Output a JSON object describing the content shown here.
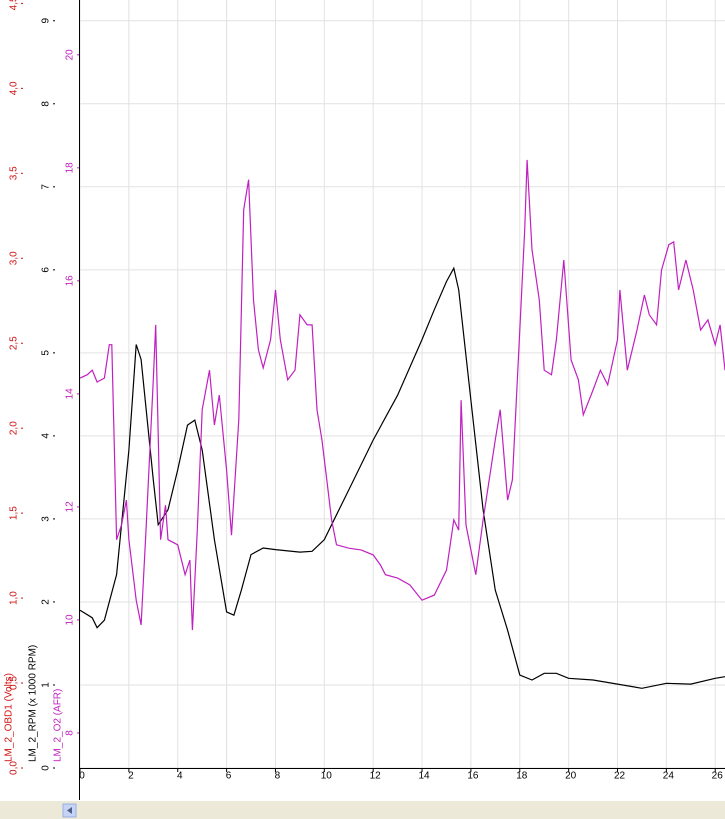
{
  "chart_data": {
    "type": "line",
    "grid": true,
    "xlim": [
      0,
      26.4
    ],
    "xticks": [
      0,
      2,
      4,
      6,
      8,
      10,
      12,
      14,
      16,
      18,
      20,
      22,
      24,
      26
    ],
    "yaxes": [
      {
        "label": "LM_2_OBD1 (Volts)",
        "color": "#d01010",
        "ylim": [
          0,
          4.52
        ],
        "yticks": [
          {
            "value": 0,
            "label": "0,0"
          },
          {
            "value": 0.5,
            "label": "0,5"
          },
          {
            "value": 1,
            "label": "1,0"
          },
          {
            "value": 1.5,
            "label": "1,5"
          },
          {
            "value": 2,
            "label": "2,0"
          },
          {
            "value": 2.5,
            "label": "2,5"
          },
          {
            "value": 3,
            "label": "3,0"
          },
          {
            "value": 3.5,
            "label": "3,5"
          },
          {
            "value": 4,
            "label": "4,0"
          },
          {
            "value": 4.5,
            "label": "4,5"
          }
        ]
      },
      {
        "label": "LM_2_RPM (x 1000 RPM)",
        "color": "#000000",
        "ylim": [
          0,
          9.25
        ],
        "yticks": [
          0,
          1,
          2,
          3,
          4,
          5,
          6,
          7,
          8,
          9
        ]
      },
      {
        "label": "LM_2_O2 (AFR)",
        "color": "#c020c0",
        "ylim": [
          7.38,
          20.97
        ],
        "yticks": [
          8,
          10,
          12,
          14,
          16,
          18,
          20
        ]
      }
    ],
    "series": [
      {
        "name": "LM_2_RPM",
        "color": "#000000",
        "axis": 1,
        "x": [
          0,
          0.5,
          0.7,
          1,
          1.5,
          2,
          2.3,
          2.5,
          3,
          3.2,
          3.6,
          4,
          4.4,
          4.7,
          5,
          5.5,
          6,
          6.3,
          6.6,
          7,
          7.5,
          8,
          9,
          9.5,
          10,
          10.5,
          11,
          12,
          13,
          14,
          14.5,
          15,
          15.3,
          15.5,
          16,
          16.5,
          17,
          17.5,
          18,
          18.5,
          19,
          19.5,
          20,
          21,
          22,
          23,
          24,
          25,
          26,
          26.4
        ],
        "values": [
          1.9,
          1.81,
          1.69,
          1.78,
          2.33,
          3.83,
          5.1,
          4.92,
          3.47,
          2.93,
          3.11,
          3.59,
          4.13,
          4.19,
          3.83,
          2.75,
          1.88,
          1.84,
          2.14,
          2.57,
          2.65,
          2.63,
          2.6,
          2.61,
          2.75,
          3.05,
          3.35,
          3.95,
          4.49,
          5.16,
          5.52,
          5.86,
          6.02,
          5.76,
          4.43,
          3.11,
          2.14,
          1.66,
          1.12,
          1.06,
          1.14,
          1.14,
          1.08,
          1.06,
          1.01,
          0.96,
          1.02,
          1.01,
          1.08,
          1.1
        ]
      },
      {
        "name": "LM_2_O2",
        "color": "#c020c0",
        "axis": 2,
        "x": [
          0,
          0.3,
          0.5,
          0.7,
          1,
          1.2,
          1.3,
          1.5,
          1.7,
          1.9,
          2,
          2.3,
          2.5,
          2.7,
          3,
          3.1,
          3.3,
          3.5,
          3.6,
          4,
          4.3,
          4.5,
          4.6,
          4.8,
          5,
          5.3,
          5.5,
          5.7,
          6,
          6.2,
          6.5,
          6.7,
          6.9,
          7.1,
          7.3,
          7.5,
          7.8,
          8,
          8.2,
          8.5,
          8.8,
          9,
          9.3,
          9.5,
          9.7,
          9.9,
          10.1,
          10.3,
          10.5,
          11,
          11.5,
          12,
          12.3,
          12.5,
          13,
          13.5,
          14,
          14.5,
          15,
          15.3,
          15.5,
          15.6,
          15.8,
          16.2,
          16.5,
          17,
          17.2,
          17.5,
          17.7,
          18,
          18.2,
          18.3,
          18.5,
          18.8,
          19,
          19.3,
          19.5,
          19.8,
          20.1,
          20.4,
          20.6,
          21,
          21.3,
          21.6,
          22,
          22.1,
          22.4,
          22.8,
          23.1,
          23.3,
          23.6,
          23.8,
          24.1,
          24.3,
          24.5,
          24.8,
          25.1,
          25.4,
          25.7,
          26,
          26.2,
          26.4
        ],
        "values": [
          14.28,
          14.34,
          14.42,
          14.21,
          14.28,
          14.87,
          14.87,
          11.42,
          11.68,
          12.12,
          11.42,
          10.35,
          9.91,
          11.59,
          14.25,
          15.22,
          11.42,
          12.03,
          11.42,
          11.33,
          10.8,
          11.06,
          9.82,
          11.59,
          13.72,
          14.42,
          13.45,
          13.98,
          12.65,
          11.5,
          13.54,
          17.26,
          17.79,
          15.66,
          14.78,
          14.46,
          14.96,
          15.84,
          14.96,
          14.25,
          14.42,
          15.4,
          15.22,
          15.22,
          13.72,
          13.19,
          12.48,
          11.77,
          11.33,
          11.27,
          11.24,
          11.15,
          10.97,
          10.8,
          10.74,
          10.62,
          10.35,
          10.44,
          10.88,
          11.77,
          11.59,
          13.89,
          11.68,
          10.8,
          11.77,
          13.19,
          13.72,
          12.12,
          12.48,
          15.13,
          16.9,
          18.14,
          16.55,
          15.66,
          14.42,
          14.34,
          14.96,
          16.37,
          14.6,
          14.25,
          13.63,
          14.07,
          14.42,
          14.16,
          14.96,
          15.84,
          14.42,
          15.13,
          15.75,
          15.4,
          15.22,
          16.19,
          16.64,
          16.69,
          15.84,
          16.37,
          15.84,
          15.13,
          15.31,
          14.87,
          15.22,
          14.42
        ]
      }
    ]
  }
}
